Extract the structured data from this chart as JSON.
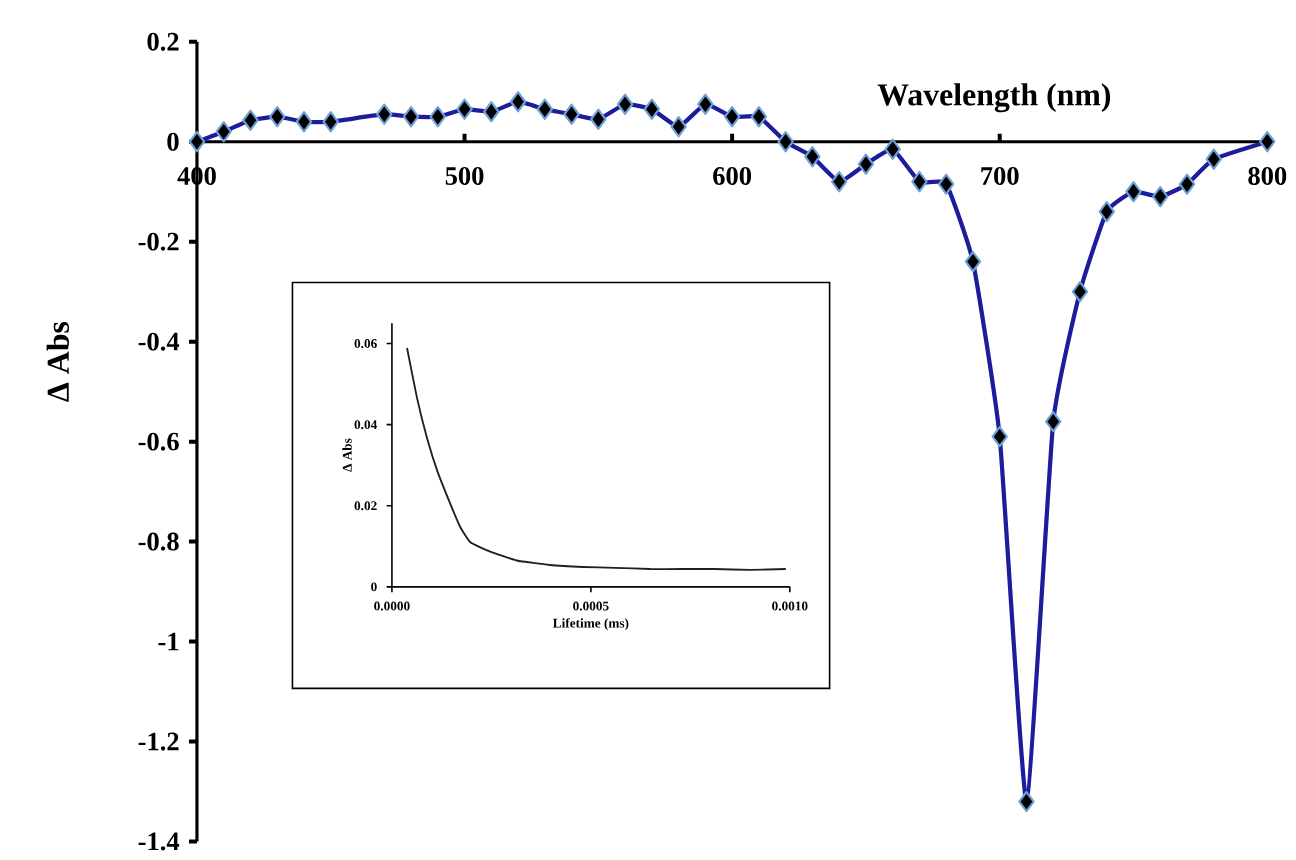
{
  "chart_data": [
    {
      "type": "line",
      "xlabel": "Wavelength (nm)",
      "ylabel": "Δ Abs",
      "marker": "diamond",
      "x": [
        400,
        410,
        420,
        430,
        440,
        450,
        470,
        480,
        490,
        500,
        510,
        520,
        530,
        540,
        550,
        560,
        570,
        580,
        590,
        600,
        610,
        620,
        630,
        640,
        650,
        660,
        670,
        680,
        690,
        700,
        710,
        720,
        730,
        740,
        750,
        760,
        770,
        780,
        800
      ],
      "series": [
        {
          "color": "#1c1c9c",
          "values": [
            0.0,
            0.02,
            0.043,
            0.05,
            0.04,
            0.04,
            0.055,
            0.05,
            0.05,
            0.065,
            0.06,
            0.08,
            0.065,
            0.055,
            0.045,
            0.075,
            0.065,
            0.03,
            0.075,
            0.05,
            0.05,
            0.0,
            -0.03,
            -0.08,
            -0.045,
            -0.015,
            -0.08,
            -0.085,
            -0.24,
            -0.59,
            -1.32,
            -0.56,
            -0.3,
            -0.14,
            -0.1,
            -0.11,
            -0.085,
            -0.035,
            0.0
          ]
        }
      ],
      "xlim": [
        400,
        800
      ],
      "ylim": [
        -1.4,
        0.2
      ],
      "xticks": [
        400,
        500,
        600,
        700,
        800
      ],
      "yticks": [
        0.2,
        0,
        -0.2,
        -0.4,
        -0.6,
        -0.8,
        -1,
        -1.2,
        -1.4
      ]
    },
    {
      "type": "line",
      "xlabel": "Lifetime (ms)",
      "ylabel": "Δ Abs",
      "x": [
        3.8e-05,
        6.3e-05,
        8.8e-05,
        0.000114,
        0.000147,
        0.000172,
        0.000197,
        0.000247,
        0.000314,
        0.000397,
        0.00048,
        0.00056,
        0.00065,
        0.00073,
        0.00081,
        0.0009,
        0.00099
      ],
      "series": [
        {
          "color": "#202020",
          "values": [
            0.0589,
            0.0466,
            0.0368,
            0.0286,
            0.0204,
            0.0147,
            0.011,
            0.0087,
            0.0065,
            0.0054,
            0.0049,
            0.0047,
            0.0044,
            0.0044,
            0.0044,
            0.0042,
            0.0044
          ]
        }
      ],
      "xlim": [
        0,
        0.001
      ],
      "ylim": [
        0,
        0.065
      ],
      "xticks": [
        {
          "value": 0,
          "label": "0.0000"
        },
        {
          "value": 0.0005,
          "label": "0.0005"
        },
        {
          "value": 0.001,
          "label": "0.0010"
        }
      ],
      "yticks": [
        0,
        0.02,
        0.04,
        0.06
      ]
    }
  ]
}
